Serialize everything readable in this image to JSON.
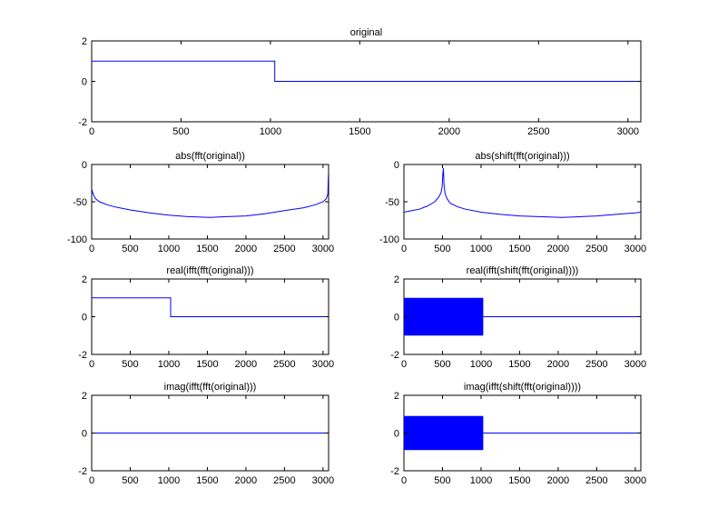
{
  "chart_data": [
    {
      "id": "original",
      "type": "line",
      "title": "original",
      "xlabel": "",
      "ylabel": "",
      "xlim": [
        0,
        3072
      ],
      "ylim": [
        -2,
        2
      ],
      "xticks": [
        0,
        500,
        1000,
        1500,
        2000,
        2500,
        3000
      ],
      "yticks": [
        -2,
        0,
        2
      ],
      "grid": false,
      "color": "#0000ff",
      "series": [
        {
          "x": [
            0,
            1024,
            1024,
            3072
          ],
          "y": [
            1,
            1,
            0,
            0
          ]
        }
      ]
    },
    {
      "id": "abs-fft",
      "type": "line",
      "title": "abs(fft(original))",
      "xlabel": "",
      "ylabel": "",
      "xlim": [
        0,
        3072
      ],
      "ylim": [
        -100,
        0
      ],
      "xticks": [
        0,
        500,
        1000,
        1500,
        2000,
        2500,
        3000
      ],
      "yticks": [
        -100,
        -50,
        0
      ],
      "grid": false,
      "color": "#0000ff",
      "series": [
        {
          "x": [
            0,
            20,
            50,
            100,
            200,
            300,
            500,
            750,
            1000,
            1250,
            1536,
            1750,
            2000,
            2250,
            2500,
            2750,
            2900,
            3000,
            3040,
            3062,
            3070
          ],
          "y": [
            -33,
            -40,
            -46,
            -50,
            -54,
            -57,
            -61,
            -65,
            -68,
            -70,
            -71,
            -70,
            -69,
            -66,
            -62,
            -58,
            -54,
            -50,
            -46,
            -40,
            -14
          ]
        }
      ]
    },
    {
      "id": "abs-shift-fft",
      "type": "line",
      "title": "abs(shift(fft(original)))",
      "xlabel": "",
      "ylabel": "",
      "xlim": [
        0,
        3072
      ],
      "ylim": [
        -100,
        0
      ],
      "xticks": [
        0,
        500,
        1000,
        1500,
        2000,
        2500,
        3000
      ],
      "yticks": [
        -100,
        -50,
        0
      ],
      "grid": false,
      "color": "#0000ff",
      "series": [
        {
          "x": [
            0,
            100,
            200,
            300,
            400,
            450,
            480,
            495,
            505,
            512,
            520,
            535,
            560,
            600,
            700,
            800,
            1000,
            1250,
            1500,
            1750,
            2048,
            2300,
            2500,
            2750,
            3000,
            3072
          ],
          "y": [
            -64,
            -62,
            -60,
            -56,
            -50,
            -44,
            -38,
            -30,
            -12,
            -5,
            -28,
            -40,
            -46,
            -52,
            -57,
            -60,
            -64,
            -67,
            -69,
            -70,
            -71,
            -70,
            -69,
            -67,
            -65,
            -64
          ]
        }
      ]
    },
    {
      "id": "real-ifft-fft",
      "type": "line",
      "title": "real(ifft(fft(original)))",
      "xlabel": "",
      "ylabel": "",
      "xlim": [
        0,
        3072
      ],
      "ylim": [
        -2,
        2
      ],
      "xticks": [
        0,
        500,
        1000,
        1500,
        2000,
        2500,
        3000
      ],
      "yticks": [
        -2,
        0,
        2
      ],
      "grid": false,
      "color": "#0000ff",
      "series": [
        {
          "x": [
            0,
            1024,
            1024,
            3072
          ],
          "y": [
            1,
            1,
            0,
            0
          ]
        }
      ]
    },
    {
      "id": "real-ifft-shift-fft",
      "type": "line",
      "title": "real(ifft(shift(fft(original))))",
      "xlabel": "",
      "ylabel": "",
      "xlim": [
        0,
        3072
      ],
      "ylim": [
        -2,
        2
      ],
      "xticks": [
        0,
        500,
        1000,
        1500,
        2000,
        2500,
        3000
      ],
      "yticks": [
        -2,
        0,
        2
      ],
      "grid": false,
      "color": "#0000ff",
      "oscillation": {
        "x_start": 0,
        "x_end": 1024,
        "low": -1,
        "high": 1
      },
      "series": [
        {
          "x": [
            1024,
            3072
          ],
          "y": [
            0,
            0
          ]
        }
      ]
    },
    {
      "id": "imag-ifft-fft",
      "type": "line",
      "title": "imag(ifft(fft(original)))",
      "xlabel": "",
      "ylabel": "",
      "xlim": [
        0,
        3072
      ],
      "ylim": [
        -2,
        2
      ],
      "xticks": [
        0,
        500,
        1000,
        1500,
        2000,
        2500,
        3000
      ],
      "yticks": [
        -2,
        0,
        2
      ],
      "grid": false,
      "color": "#0000ff",
      "series": [
        {
          "x": [
            0,
            3072
          ],
          "y": [
            0,
            0
          ]
        }
      ]
    },
    {
      "id": "imag-ifft-shift-fft",
      "type": "line",
      "title": "imag(ifft(shift(fft(original))))",
      "xlabel": "",
      "ylabel": "",
      "xlim": [
        0,
        3072
      ],
      "ylim": [
        -2,
        2
      ],
      "xticks": [
        0,
        500,
        1000,
        1500,
        2000,
        2500,
        3000
      ],
      "yticks": [
        -2,
        0,
        2
      ],
      "grid": false,
      "color": "#0000ff",
      "oscillation": {
        "x_start": 0,
        "x_end": 1024,
        "low": -0.9,
        "high": 0.9
      },
      "series": [
        {
          "x": [
            1024,
            3072
          ],
          "y": [
            0,
            0
          ]
        }
      ]
    }
  ]
}
